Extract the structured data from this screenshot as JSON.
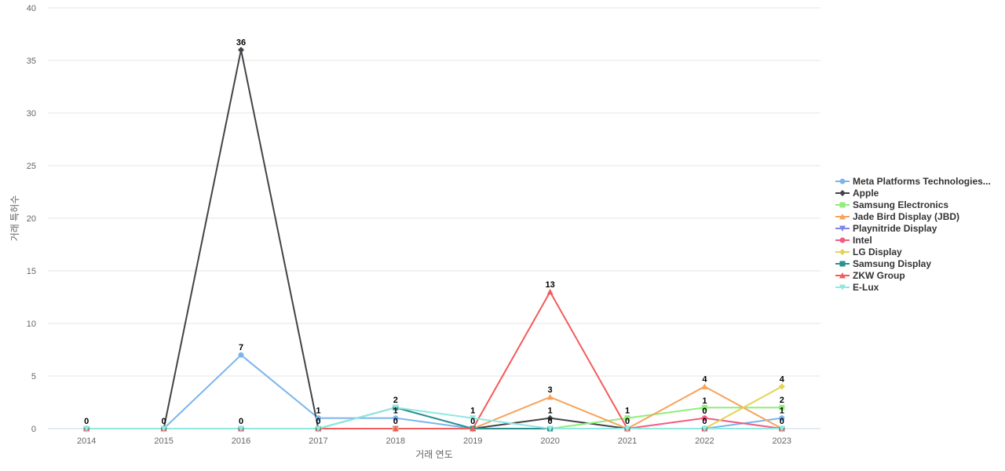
{
  "chart_data": {
    "type": "line",
    "xlabel": "거래 연도",
    "ylabel": "거래 특허수",
    "ylim": [
      0,
      40
    ],
    "yticks": [
      0,
      5,
      10,
      15,
      20,
      25,
      30,
      35,
      40
    ],
    "categories": [
      "2014",
      "2015",
      "2016",
      "2017",
      "2018",
      "2019",
      "2020",
      "2021",
      "2022",
      "2023"
    ],
    "grid": true,
    "legend_position": "right",
    "series": [
      {
        "name": "Meta Platforms Technologies...",
        "color": "#7cb5ec",
        "marker": "circle",
        "values": [
          0,
          0,
          7,
          1,
          1,
          0,
          0,
          0,
          0,
          1
        ],
        "labeled": [
          true,
          true,
          true,
          true,
          true,
          true,
          true,
          true,
          true,
          true
        ]
      },
      {
        "name": "Apple",
        "color": "#434348",
        "marker": "diamond",
        "values": [
          0,
          0,
          36,
          0,
          0,
          0,
          1,
          0,
          0,
          0
        ],
        "labeled": [
          false,
          false,
          true,
          true,
          false,
          false,
          true,
          false,
          false,
          true
        ]
      },
      {
        "name": "Samsung Electronics",
        "color": "#90ed7d",
        "marker": "square",
        "values": [
          0,
          0,
          0,
          0,
          0,
          0,
          0,
          1,
          2,
          2
        ],
        "labeled": [
          false,
          false,
          true,
          false,
          false,
          false,
          false,
          true,
          false,
          true
        ]
      },
      {
        "name": "Jade Bird Display (JBD)",
        "color": "#f7a35c",
        "marker": "triangle",
        "values": [
          0,
          0,
          0,
          0,
          0,
          0,
          3,
          0,
          4,
          0
        ],
        "labeled": [
          false,
          false,
          false,
          false,
          false,
          false,
          true,
          false,
          true,
          false
        ]
      },
      {
        "name": "Playnitride Display",
        "color": "#8085e9",
        "marker": "triangle-down",
        "values": [
          0,
          0,
          0,
          0,
          0,
          0,
          0,
          0,
          0,
          0
        ],
        "labeled": [
          false,
          false,
          false,
          false,
          false,
          false,
          false,
          false,
          false,
          false
        ]
      },
      {
        "name": "Intel",
        "color": "#f15c80",
        "marker": "circle",
        "values": [
          0,
          0,
          0,
          0,
          0,
          0,
          0,
          0,
          1,
          0
        ],
        "labeled": [
          false,
          false,
          false,
          false,
          false,
          false,
          false,
          false,
          true,
          false
        ]
      },
      {
        "name": "LG Display",
        "color": "#e4d354",
        "marker": "diamond",
        "values": [
          0,
          0,
          0,
          0,
          0,
          0,
          0,
          0,
          0,
          4
        ],
        "labeled": [
          false,
          false,
          false,
          false,
          false,
          false,
          false,
          false,
          true,
          true
        ]
      },
      {
        "name": "Samsung Display",
        "color": "#2b908f",
        "marker": "square",
        "values": [
          0,
          0,
          0,
          0,
          2,
          0,
          0,
          0,
          0,
          0
        ],
        "labeled": [
          false,
          false,
          false,
          false,
          true,
          false,
          false,
          false,
          false,
          false
        ]
      },
      {
        "name": "ZKW Group",
        "color": "#f45b5b",
        "marker": "triangle",
        "values": [
          0,
          0,
          0,
          0,
          0,
          0,
          13,
          0,
          0,
          0
        ],
        "labeled": [
          false,
          false,
          false,
          false,
          true,
          false,
          true,
          false,
          false,
          false
        ]
      },
      {
        "name": "E-Lux",
        "color": "#91e8e1",
        "marker": "triangle-down",
        "values": [
          0,
          0,
          0,
          0,
          2,
          1,
          0,
          0,
          0,
          0
        ],
        "labeled": [
          false,
          false,
          false,
          false,
          false,
          true,
          false,
          false,
          false,
          false
        ]
      }
    ]
  }
}
